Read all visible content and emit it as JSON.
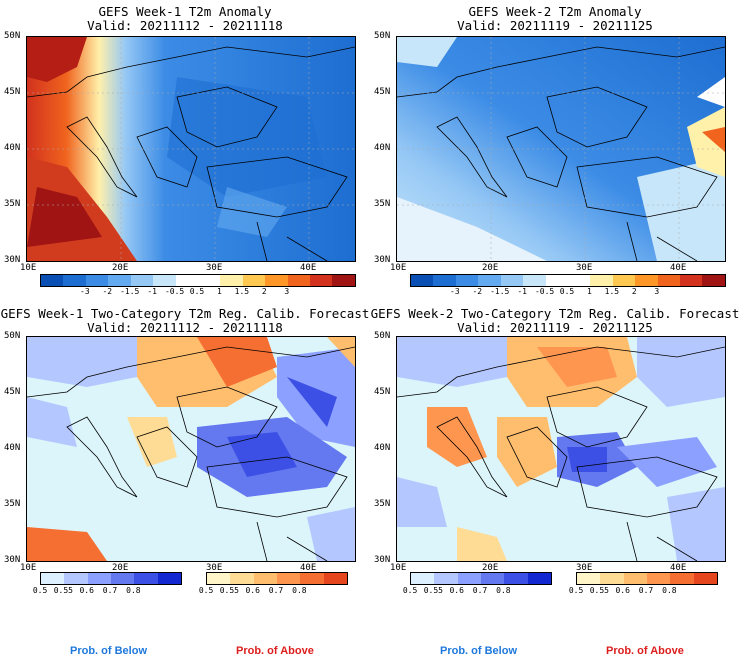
{
  "panels": [
    {
      "title": "GEFS Week-1 T2m Anomaly",
      "valid": "Valid: 20211112 - 20211118",
      "type": "anomaly"
    },
    {
      "title": "GEFS Week-2 T2m Anomaly",
      "valid": "Valid: 20211119 - 20211125",
      "type": "anomaly"
    },
    {
      "title": "GEFS Week-1 Two-Category T2m Reg. Calib. Forecast",
      "valid": "Valid: 20211112 - 20211118",
      "type": "prob"
    },
    {
      "title": "GEFS Week-2 Two-Category T2m Reg. Calib. Forecast",
      "valid": "Valid: 20211119 - 20211125",
      "type": "prob"
    }
  ],
  "axes": {
    "lat_labels": [
      "50N",
      "45N",
      "40N",
      "35N",
      "30N"
    ],
    "lon_labels": [
      "10E",
      "20E",
      "30E",
      "40E"
    ]
  },
  "anomaly_colorbar": {
    "ticks": [
      "-3",
      "-2",
      "-1.5",
      "-1",
      "-0.5",
      "0.5",
      "1",
      "1.5",
      "2",
      "3"
    ],
    "colors": [
      "#0a50b4",
      "#1e6ed2",
      "#3c8ce6",
      "#64aaf0",
      "#96c8f5",
      "#c8e6fa",
      "#ffffff",
      "#ffffff",
      "#fff0aa",
      "#ffc850",
      "#ff9628",
      "#f0641e",
      "#d2321e",
      "#a01414"
    ]
  },
  "prob_colorbar_below": {
    "ticks": [
      "0.5",
      "0.55",
      "0.6",
      "0.7",
      "0.8"
    ],
    "colors": [
      "#dcf0ff",
      "#b4c8ff",
      "#8ca0ff",
      "#6478f0",
      "#3c50e6",
      "#1428d2"
    ]
  },
  "prob_colorbar_above": {
    "ticks": [
      "0.5",
      "0.55",
      "0.6",
      "0.7",
      "0.8"
    ],
    "colors": [
      "#fff5c8",
      "#ffdc96",
      "#ffbe6e",
      "#ff9650",
      "#f56e32",
      "#e6461e"
    ]
  },
  "captions": {
    "below": "Prob. of Below",
    "above": "Prob. of Above"
  },
  "colors": {
    "sea_prob": "#dcf5fa",
    "text_below": "#1e78dc",
    "text_above": "#dc1e1e"
  }
}
